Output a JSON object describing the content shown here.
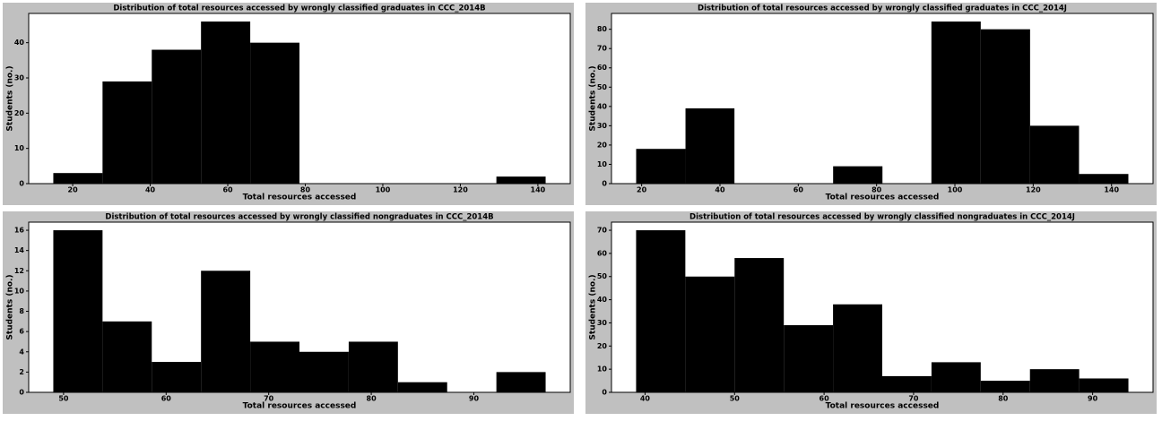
{
  "chart_data": [
    {
      "type": "histogram",
      "title": "Distribution of total resources accessed by wrongly classified graduates in CCC_2014B",
      "x_label": "Total resources accessed",
      "y_label": "Students (no.)",
      "color": "#000000",
      "bins": [
        15,
        27.7,
        40.4,
        53.1,
        65.8,
        78.5,
        91.2,
        103.9,
        116.6,
        129.3,
        142
      ],
      "counts": [
        3,
        29,
        38,
        46,
        40,
        0,
        0,
        0,
        0,
        2
      ],
      "xlim": [
        8.65,
        148.35
      ],
      "xticks": [
        20,
        40,
        60,
        80,
        100,
        120,
        140
      ],
      "ylim": [
        0,
        48.3
      ],
      "yticks": [
        0,
        10,
        20,
        30,
        40
      ]
    },
    {
      "type": "histogram",
      "title": "Distribution of total resources accessed by wrongly classified graduates in CCC_2014J",
      "x_label": "Total resources accessed",
      "y_label": "Students (no.)",
      "color": "#000000",
      "bins": [
        18.6,
        31.2,
        43.7,
        56.3,
        68.9,
        81.5,
        94.0,
        106.6,
        119.2,
        131.7,
        144.3
      ],
      "counts": [
        18,
        39,
        0,
        0,
        9,
        0,
        84,
        80,
        30,
        5
      ],
      "xlim": [
        12.3,
        150.6
      ],
      "xticks": [
        20,
        40,
        60,
        80,
        100,
        120,
        140
      ],
      "ylim": [
        0,
        88.2
      ],
      "yticks": [
        0,
        10,
        20,
        30,
        40,
        50,
        60,
        70,
        80
      ]
    },
    {
      "type": "histogram",
      "title": "Distribution of total resources accessed by wrongly classified nongraduates in CCC_2014B",
      "x_label": "Total resources accessed",
      "y_label": "Students (no.)",
      "color": "#000000",
      "bins": [
        49,
        53.8,
        58.6,
        63.4,
        68.2,
        73,
        77.8,
        82.6,
        87.4,
        92.2,
        97
      ],
      "counts": [
        16,
        7,
        3,
        12,
        5,
        4,
        5,
        1,
        0,
        2
      ],
      "xlim": [
        46.6,
        99.4
      ],
      "xticks": [
        50,
        60,
        70,
        80,
        90
      ],
      "ylim": [
        0,
        16.8
      ],
      "yticks": [
        0,
        2,
        4,
        6,
        8,
        10,
        12,
        14,
        16
      ]
    },
    {
      "type": "histogram",
      "title": "Distribution of total resources accessed by wrongly classified nongraduates in CCC_2014J",
      "x_label": "Total resources accessed",
      "y_label": "Students (no.)",
      "color": "#000000",
      "bins": [
        39,
        44.5,
        50,
        55.5,
        61,
        66.5,
        72,
        77.5,
        83,
        88.5,
        94
      ],
      "counts": [
        70,
        50,
        58,
        29,
        38,
        7,
        13,
        5,
        10,
        6
      ],
      "xlim": [
        36.25,
        96.75
      ],
      "xticks": [
        40,
        50,
        60,
        70,
        80,
        90
      ],
      "ylim": [
        0,
        73.5
      ],
      "yticks": [
        0,
        10,
        20,
        30,
        40,
        50,
        60,
        70
      ]
    }
  ]
}
